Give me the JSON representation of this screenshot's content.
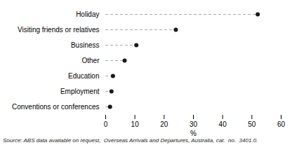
{
  "chart_data": {
    "type": "lollipop",
    "orientation": "horizontal",
    "categories": [
      "Holiday",
      "Visiting friends or relatives",
      "Business",
      "Other",
      "Education",
      "Employment",
      "Conventions or conferences"
    ],
    "values": [
      52,
      24,
      10.5,
      6.5,
      2.5,
      2.0,
      1.5
    ],
    "xlabel": "%",
    "xlim": [
      0,
      60
    ],
    "xticks": [
      0,
      10,
      20,
      30,
      40,
      50,
      60
    ],
    "color": "#1a1a1a",
    "line_style": "dashed",
    "marker": "circle",
    "grid": false,
    "annotations": [
      "Source: ABS data available on request,  Overseas Arrivals and Departures, Australia, cat.  no.  3401.0."
    ]
  }
}
